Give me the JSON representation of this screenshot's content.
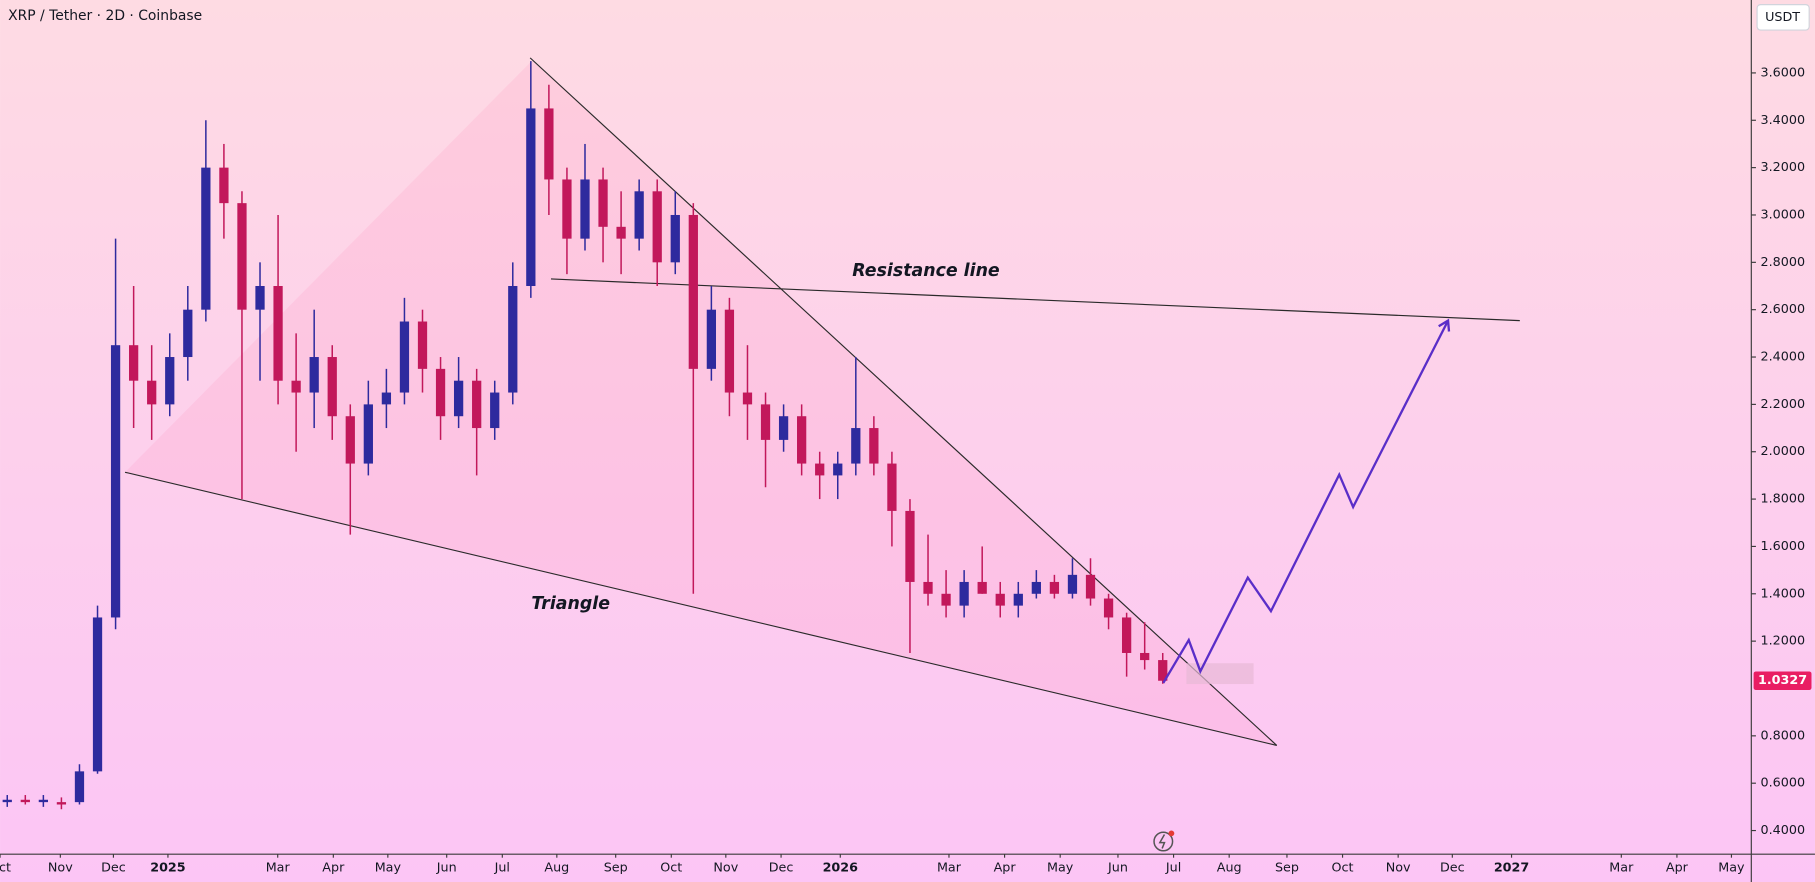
{
  "chart_data": {
    "type": "candlestick",
    "title": "XRP / Tether · 2D · Coinbase",
    "currency_button": "USDT",
    "annotations": [
      "Resistance line",
      "Triangle"
    ],
    "up_color": "#2e2a9e",
    "down_color": "#c2185b",
    "xlim": [
      0,
      485
    ],
    "xticks": [
      {
        "value": 0,
        "label": "Oct"
      },
      {
        "value": 16.7,
        "label": "Nov"
      },
      {
        "value": 31.4,
        "label": "Dec"
      },
      {
        "value": 46.5,
        "label": "2025"
      },
      {
        "value": 76.9,
        "label": "Mar"
      },
      {
        "value": 92.3,
        "label": "Apr"
      },
      {
        "value": 107.4,
        "label": "May"
      },
      {
        "value": 123.7,
        "label": "Jun"
      },
      {
        "value": 139.1,
        "label": "Jul"
      },
      {
        "value": 154.2,
        "label": "Aug"
      },
      {
        "value": 170.5,
        "label": "Sep"
      },
      {
        "value": 185.9,
        "label": "Oct"
      },
      {
        "value": 201,
        "label": "Nov"
      },
      {
        "value": 216.3,
        "label": "Dec"
      },
      {
        "value": 232.7,
        "label": "2026"
      },
      {
        "value": 262.8,
        "label": "Mar"
      },
      {
        "value": 278.2,
        "label": "Apr"
      },
      {
        "value": 293.6,
        "label": "May"
      },
      {
        "value": 309.6,
        "label": "Jun"
      },
      {
        "value": 325,
        "label": "Jul"
      },
      {
        "value": 340.4,
        "label": "Aug"
      },
      {
        "value": 356.4,
        "label": "Sep"
      },
      {
        "value": 371.8,
        "label": "Oct"
      },
      {
        "value": 387.2,
        "label": "Nov"
      },
      {
        "value": 402.2,
        "label": "Dec"
      },
      {
        "value": 418.6,
        "label": "2027"
      },
      {
        "value": 449,
        "label": "Mar"
      },
      {
        "value": 464.4,
        "label": "Apr"
      },
      {
        "value": 479.5,
        "label": "May"
      }
    ],
    "ylim": [
      0.3,
      3.908
    ],
    "yticks": [
      {
        "value": 0.4,
        "label": "0.4000"
      },
      {
        "value": 0.6,
        "label": "0.6000"
      },
      {
        "value": 0.8,
        "label": "0.8000"
      },
      {
        "value": 1.2,
        "label": "1.2000"
      },
      {
        "value": 1.4,
        "label": "1.4000"
      },
      {
        "value": 1.6,
        "label": "1.6000"
      },
      {
        "value": 1.8,
        "label": "1.8000"
      },
      {
        "value": 2.0,
        "label": "2.0000"
      },
      {
        "value": 2.2,
        "label": "2.2000"
      },
      {
        "value": 2.4,
        "label": "2.4000"
      },
      {
        "value": 2.6,
        "label": "2.6000"
      },
      {
        "value": 2.8,
        "label": "2.8000"
      },
      {
        "value": 3.0,
        "label": "3.0000"
      },
      {
        "value": 3.2,
        "label": "3.2000"
      },
      {
        "value": 3.4,
        "label": "3.4000"
      },
      {
        "value": 3.6,
        "label": "3.6000"
      }
    ],
    "x": [
      2,
      7,
      12,
      17,
      22,
      27,
      32,
      37,
      42,
      47,
      52,
      57,
      62,
      67,
      72,
      77,
      82,
      87,
      92,
      97,
      102,
      107,
      112,
      117,
      122,
      127,
      132,
      137,
      142,
      147,
      152,
      157,
      162,
      167,
      172,
      177,
      182,
      187,
      192,
      197,
      202,
      207,
      212,
      217,
      222,
      227,
      232,
      237,
      242,
      247,
      252,
      257,
      262,
      267,
      272,
      277,
      282,
      287,
      292,
      297,
      302,
      307,
      312,
      317,
      322
    ],
    "open": [
      0.52,
      0.53,
      0.52,
      0.52,
      0.52,
      0.65,
      1.3,
      2.45,
      2.3,
      2.2,
      2.4,
      2.6,
      3.2,
      3.05,
      2.6,
      2.7,
      2.3,
      2.25,
      2.4,
      2.15,
      1.95,
      2.2,
      2.25,
      2.55,
      2.35,
      2.15,
      2.3,
      2.1,
      2.25,
      2.7,
      3.45,
      3.15,
      2.9,
      3.15,
      2.95,
      2.9,
      3.1,
      2.8,
      3.0,
      2.35,
      2.6,
      2.25,
      2.2,
      2.05,
      2.15,
      1.95,
      1.9,
      1.95,
      2.1,
      1.95,
      1.75,
      1.45,
      1.4,
      1.35,
      1.45,
      1.4,
      1.35,
      1.4,
      1.45,
      1.4,
      1.48,
      1.38,
      1.3,
      1.15,
      1.12
    ],
    "high": [
      0.55,
      0.55,
      0.55,
      0.54,
      0.68,
      1.35,
      2.9,
      2.7,
      2.45,
      2.5,
      2.7,
      3.4,
      3.3,
      3.1,
      2.8,
      3.0,
      2.5,
      2.6,
      2.45,
      2.2,
      2.3,
      2.35,
      2.65,
      2.6,
      2.4,
      2.4,
      2.35,
      2.3,
      2.8,
      3.65,
      3.55,
      3.2,
      3.3,
      3.2,
      3.1,
      3.15,
      3.15,
      3.1,
      3.05,
      2.7,
      2.65,
      2.45,
      2.25,
      2.2,
      2.2,
      2.0,
      2.0,
      2.4,
      2.15,
      2.0,
      1.8,
      1.65,
      1.5,
      1.5,
      1.6,
      1.45,
      1.45,
      1.5,
      1.48,
      1.55,
      1.55,
      1.4,
      1.32,
      1.28,
      1.15
    ],
    "low": [
      0.5,
      0.51,
      0.5,
      0.49,
      0.51,
      0.64,
      1.25,
      2.1,
      2.05,
      2.15,
      2.3,
      2.55,
      2.9,
      1.8,
      2.3,
      2.2,
      2.0,
      2.1,
      2.05,
      1.65,
      1.9,
      2.1,
      2.2,
      2.25,
      2.05,
      2.1,
      1.9,
      2.05,
      2.2,
      2.65,
      3.0,
      2.75,
      2.85,
      2.8,
      2.75,
      2.85,
      2.7,
      2.75,
      1.4,
      2.3,
      2.15,
      2.05,
      1.85,
      2.0,
      1.9,
      1.8,
      1.8,
      1.9,
      1.9,
      1.6,
      1.15,
      1.35,
      1.3,
      1.3,
      1.4,
      1.3,
      1.3,
      1.38,
      1.38,
      1.38,
      1.35,
      1.25,
      1.05,
      1.08,
      1.02
    ],
    "close": [
      0.53,
      0.52,
      0.53,
      0.51,
      0.65,
      1.3,
      2.45,
      2.3,
      2.2,
      2.4,
      2.6,
      3.2,
      3.05,
      2.6,
      2.7,
      2.3,
      2.25,
      2.4,
      2.15,
      1.95,
      2.2,
      2.25,
      2.55,
      2.35,
      2.15,
      2.3,
      2.1,
      2.25,
      2.7,
      3.45,
      3.15,
      2.9,
      3.15,
      2.95,
      2.9,
      3.1,
      2.8,
      3.0,
      2.35,
      2.6,
      2.25,
      2.2,
      2.05,
      2.15,
      1.95,
      1.9,
      1.95,
      2.1,
      1.95,
      1.75,
      1.45,
      1.4,
      1.35,
      1.45,
      1.4,
      1.35,
      1.4,
      1.45,
      1.4,
      1.48,
      1.38,
      1.3,
      1.15,
      1.12,
      1.0327
    ]
  }
}
